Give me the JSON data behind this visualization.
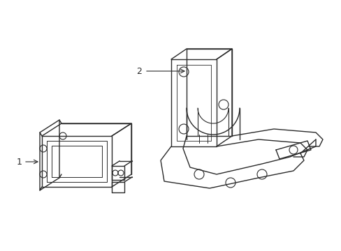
{
  "background_color": "#ffffff",
  "line_color": "#2a2a2a",
  "line_width": 1.0,
  "label1": "1",
  "label2": "2",
  "figsize": [
    4.89,
    3.6
  ],
  "dpi": 100
}
